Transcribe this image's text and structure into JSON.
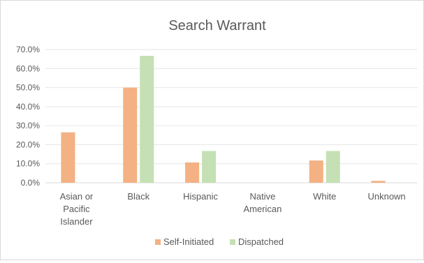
{
  "chart_data": {
    "type": "bar",
    "title": "Search Warrant",
    "xlabel": "",
    "ylabel": "",
    "categories": [
      [
        "Asian or",
        "Pacific",
        "Islander"
      ],
      [
        "Black"
      ],
      [
        "Hispanic"
      ],
      [
        "Native",
        "American"
      ],
      [
        "White"
      ],
      [
        "Unknown"
      ]
    ],
    "series": [
      {
        "name": "Self-Initiated",
        "color": "#F4B183",
        "values": [
          0.265,
          0.5,
          0.107,
          0.0,
          0.117,
          0.01
        ]
      },
      {
        "name": "Dispatched",
        "color": "#C5E0B4",
        "values": [
          0.0,
          0.667,
          0.167,
          0.0,
          0.167,
          0.0
        ]
      }
    ],
    "ylim": [
      0,
      0.7
    ],
    "yticks": [
      "0.0%",
      "10.0%",
      "20.0%",
      "30.0%",
      "40.0%",
      "50.0%",
      "60.0%",
      "70.0%"
    ],
    "grid": true,
    "legend": "bottom"
  }
}
